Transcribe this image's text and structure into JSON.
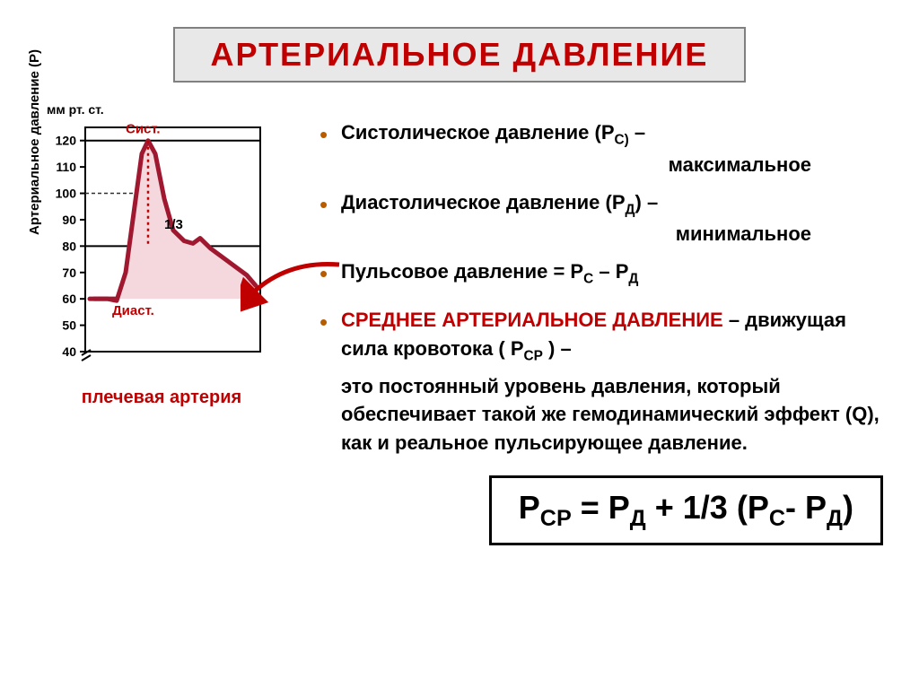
{
  "title": "АРТЕРИАЛЬНОЕ ДАВЛЕНИЕ",
  "chart": {
    "y_label": "Артериальное давление (Р)",
    "y_unit": "мм рт. ст.",
    "y_ticks": [
      40,
      50,
      60,
      70,
      80,
      90,
      100,
      110,
      120
    ],
    "label_syst": "Сист.",
    "label_diast": "Диаст.",
    "label_third": "1/3",
    "caption": "плечевая артерия",
    "curve_color": "#a01830",
    "fill_color": "#f4d8de",
    "grid_color": "#000000",
    "bg": "#ffffff",
    "ref_dash_color": "#303030",
    "red_dot_color": "#c00000",
    "syst_value": 120,
    "diast_value": 80,
    "baseline": 60
  },
  "bullets": {
    "b1_main": "Систолическое давление  (Р",
    "b1_sub": "С)",
    "b1_tail": " – ",
    "b1_line2": "максимальное",
    "b2_main": "Диастолическое давление (Р",
    "b2_sub": "Д",
    "b2_tail": ") – ",
    "b2_line2": "минимальное",
    "b3_main": "Пульсовое давление = Р",
    "b3_s1": "С",
    "b3_mid": " – Р",
    "b3_s2": "Д",
    "b4_cap": "СРЕДНЕЕ АРТЕРИАЛЬНОЕ ДАВЛЕНИЕ",
    "b4_tail": " – движущая сила кровотока     ( Р",
    "b4_sub": "СР",
    "b4_end": " )  –",
    "b4_p2": "это постоянный уровень давления, который обеспечивает такой же гемодинамический эффект (Q), как и реальное пульсирующее давление."
  },
  "formula": {
    "p1": "Р",
    "s1": "СР",
    "p2": " = Р",
    "s2": "Д",
    "p3": " + 1/3 (Р",
    "s3": "С",
    "p4": "- Р",
    "s4": "Д",
    "p5": ")"
  },
  "arrow_color": "#c00000"
}
